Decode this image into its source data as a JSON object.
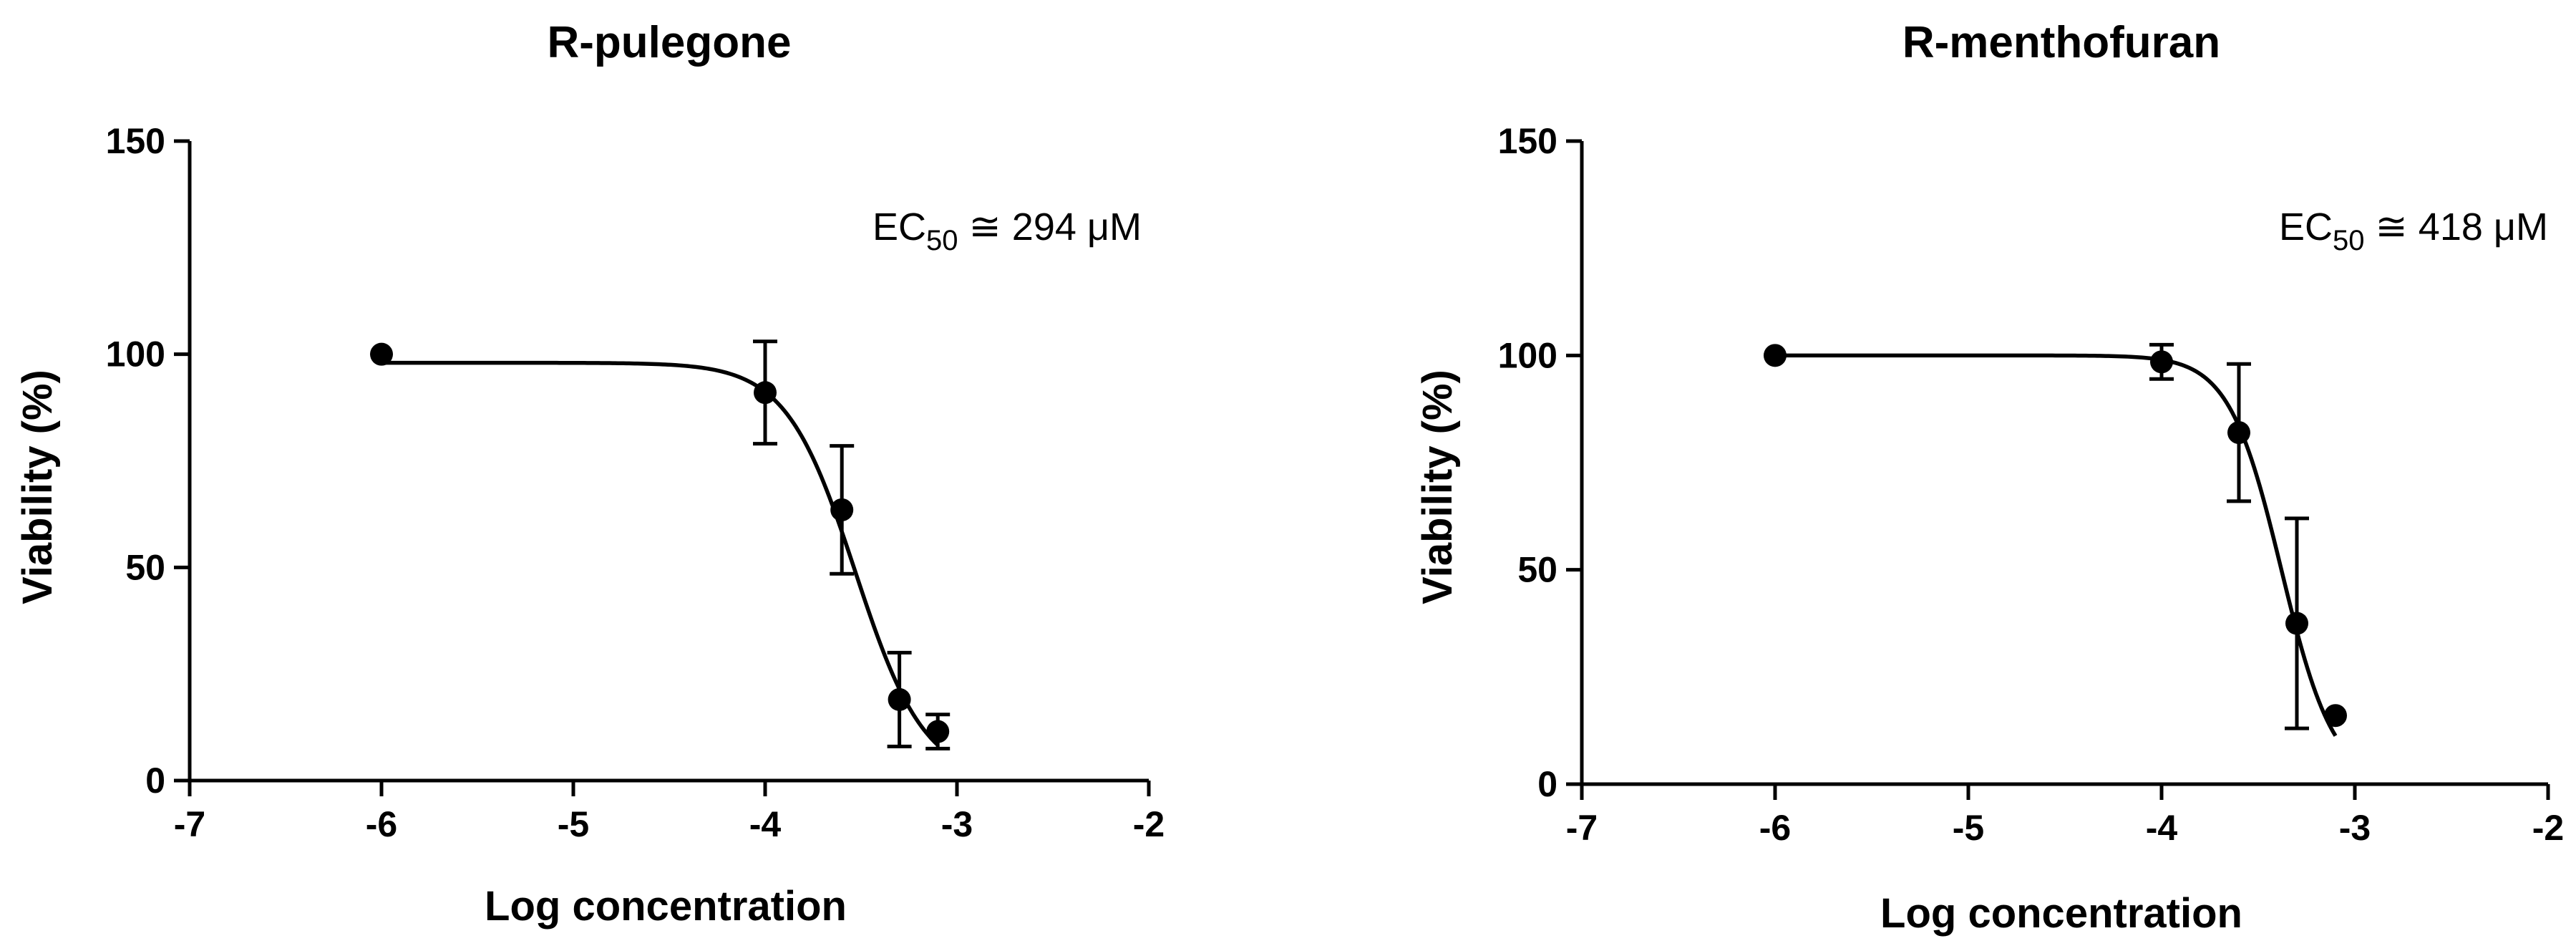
{
  "chart_data": [
    {
      "type": "scatter",
      "title": "R-pulegone",
      "xlabel": "Log concentration",
      "ylabel": "Viability (%)",
      "xlim": [
        -7,
        -2
      ],
      "ylim": [
        0,
        150
      ],
      "xticks": [
        "-7",
        "-6",
        "-5",
        "-4",
        "-3",
        "-2"
      ],
      "yticks": [
        "0",
        "50",
        "100",
        "150"
      ],
      "annotation": {
        "prefix": "EC",
        "subscript": "50",
        "suffix": " ≅ 294 μM"
      },
      "points": [
        {
          "x": -6.0,
          "y": 100,
          "err": 0
        },
        {
          "x": -4.0,
          "y": 91,
          "err": 12
        },
        {
          "x": -3.6,
          "y": 63.5,
          "err": 15
        },
        {
          "x": -3.3,
          "y": 19,
          "err": 11
        },
        {
          "x": -3.1,
          "y": 11.5,
          "err": 4
        }
      ],
      "fit": {
        "top": 98,
        "bottom": 0,
        "log_ec50": -3.53,
        "hill": 2.4,
        "x_range": [
          -6,
          -3.1
        ]
      }
    },
    {
      "type": "scatter",
      "title": "R-menthofuran",
      "xlabel": "Log concentration",
      "ylabel": "Viability (%)",
      "xlim": [
        -7,
        -2
      ],
      "ylim": [
        0,
        150
      ],
      "xticks": [
        "-7",
        "-6",
        "-5",
        "-4",
        "-3",
        "-2"
      ],
      "yticks": [
        "0",
        "50",
        "100",
        "150"
      ],
      "annotation": {
        "prefix": "EC",
        "subscript": "50",
        "suffix": " ≅ 418 μM"
      },
      "points": [
        {
          "x": -6.0,
          "y": 100,
          "err": 0
        },
        {
          "x": -4.0,
          "y": 98.5,
          "err": 4
        },
        {
          "x": -3.6,
          "y": 82,
          "err": 16
        },
        {
          "x": -3.3,
          "y": 37.5,
          "err": 24.5
        },
        {
          "x": -3.1,
          "y": 16,
          "err": 0
        }
      ],
      "fit": {
        "top": 100,
        "bottom": 0,
        "log_ec50": -3.38,
        "hill": 3.2,
        "x_range": [
          -6,
          -3.1
        ]
      }
    }
  ]
}
